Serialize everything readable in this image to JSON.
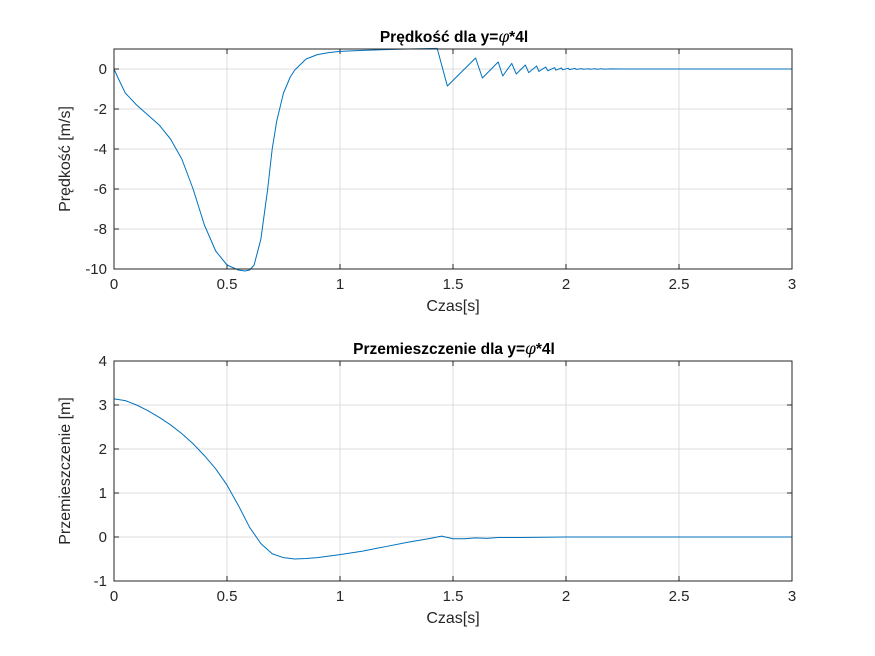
{
  "chart_data": [
    {
      "type": "line",
      "title_prefix": "Prędkość dla y=",
      "title_symbol": "φ",
      "title_suffix": "*4l",
      "xlabel": "Czas[s]",
      "ylabel": "Prędkość [m/s]",
      "xlim": [
        0,
        3
      ],
      "ylim": [
        -10,
        1
      ],
      "x_ticks": [
        0,
        0.5,
        1,
        1.5,
        2,
        2.5,
        3
      ],
      "x_tick_labels": [
        "0",
        "0.5",
        "1",
        "1.5",
        "2",
        "2.5",
        "3"
      ],
      "y_ticks": [
        -10,
        -8,
        -6,
        -4,
        -2,
        0
      ],
      "y_tick_labels": [
        "-10",
        "-8",
        "-6",
        "-4",
        "-2",
        "0"
      ],
      "grid": true,
      "series": [
        {
          "color": "#0072BD",
          "x": [
            0,
            0.02,
            0.05,
            0.1,
            0.15,
            0.2,
            0.25,
            0.3,
            0.35,
            0.4,
            0.45,
            0.5,
            0.55,
            0.58,
            0.6,
            0.62,
            0.65,
            0.68,
            0.7,
            0.72,
            0.75,
            0.78,
            0.8,
            0.85,
            0.9,
            0.95,
            1.0,
            1.1,
            1.2,
            1.3,
            1.43,
            1.475,
            1.6,
            1.63,
            1.7,
            1.72,
            1.76,
            1.78,
            1.82,
            1.835,
            1.87,
            1.88,
            1.91,
            1.92,
            1.95,
            1.955,
            1.98,
            1.985,
            2.01,
            2.015,
            2.04,
            2.045,
            2.07,
            2.075,
            2.1,
            2.105,
            2.13,
            2.135,
            2.16,
            2.165,
            2.2,
            2.25,
            2.3,
            2.5,
            3.0
          ],
          "y": [
            0,
            -0.5,
            -1.2,
            -1.8,
            -2.3,
            -2.8,
            -3.5,
            -4.5,
            -6.0,
            -7.8,
            -9.1,
            -9.8,
            -10.05,
            -10.1,
            -10.05,
            -9.8,
            -8.5,
            -6.0,
            -4.0,
            -2.6,
            -1.2,
            -0.4,
            -0.05,
            0.5,
            0.72,
            0.82,
            0.88,
            0.93,
            0.97,
            1.0,
            1.03,
            -0.85,
            0.55,
            -0.45,
            0.35,
            -0.35,
            0.28,
            -0.25,
            0.2,
            -0.18,
            0.15,
            -0.12,
            0.1,
            -0.09,
            0.07,
            -0.06,
            0.05,
            -0.04,
            0.04,
            -0.03,
            0.03,
            -0.02,
            0.02,
            -0.015,
            0.015,
            -0.012,
            0.012,
            -0.01,
            0.01,
            -0.008,
            0.004,
            0.001,
            0,
            0,
            0
          ]
        }
      ]
    },
    {
      "type": "line",
      "title_prefix": "Przemieszczenie dla y=",
      "title_symbol": "φ",
      "title_suffix": "*4l",
      "xlabel": "Czas[s]",
      "ylabel": "Przemieszczenie [m]",
      "xlim": [
        0,
        3
      ],
      "ylim": [
        -1,
        4
      ],
      "x_ticks": [
        0,
        0.5,
        1,
        1.5,
        2,
        2.5,
        3
      ],
      "x_tick_labels": [
        "0",
        "0.5",
        "1",
        "1.5",
        "2",
        "2.5",
        "3"
      ],
      "y_ticks": [
        -1,
        0,
        1,
        2,
        3,
        4
      ],
      "y_tick_labels": [
        "-1",
        "0",
        "1",
        "2",
        "3",
        "4"
      ],
      "grid": true,
      "series": [
        {
          "color": "#0072BD",
          "x": [
            0,
            0.05,
            0.1,
            0.15,
            0.2,
            0.25,
            0.3,
            0.35,
            0.4,
            0.45,
            0.5,
            0.55,
            0.6,
            0.65,
            0.7,
            0.75,
            0.8,
            0.85,
            0.9,
            1.0,
            1.1,
            1.2,
            1.3,
            1.4,
            1.43,
            1.45,
            1.5,
            1.55,
            1.6,
            1.65,
            1.7,
            1.8,
            2.0,
            2.5,
            3.0
          ],
          "y": [
            3.14,
            3.1,
            3.0,
            2.87,
            2.72,
            2.55,
            2.35,
            2.12,
            1.85,
            1.55,
            1.18,
            0.72,
            0.22,
            -0.15,
            -0.38,
            -0.47,
            -0.5,
            -0.49,
            -0.47,
            -0.4,
            -0.32,
            -0.22,
            -0.12,
            -0.03,
            0.0,
            0.02,
            -0.04,
            -0.04,
            -0.02,
            -0.03,
            -0.01,
            -0.01,
            0,
            0,
            0
          ]
        }
      ]
    }
  ]
}
